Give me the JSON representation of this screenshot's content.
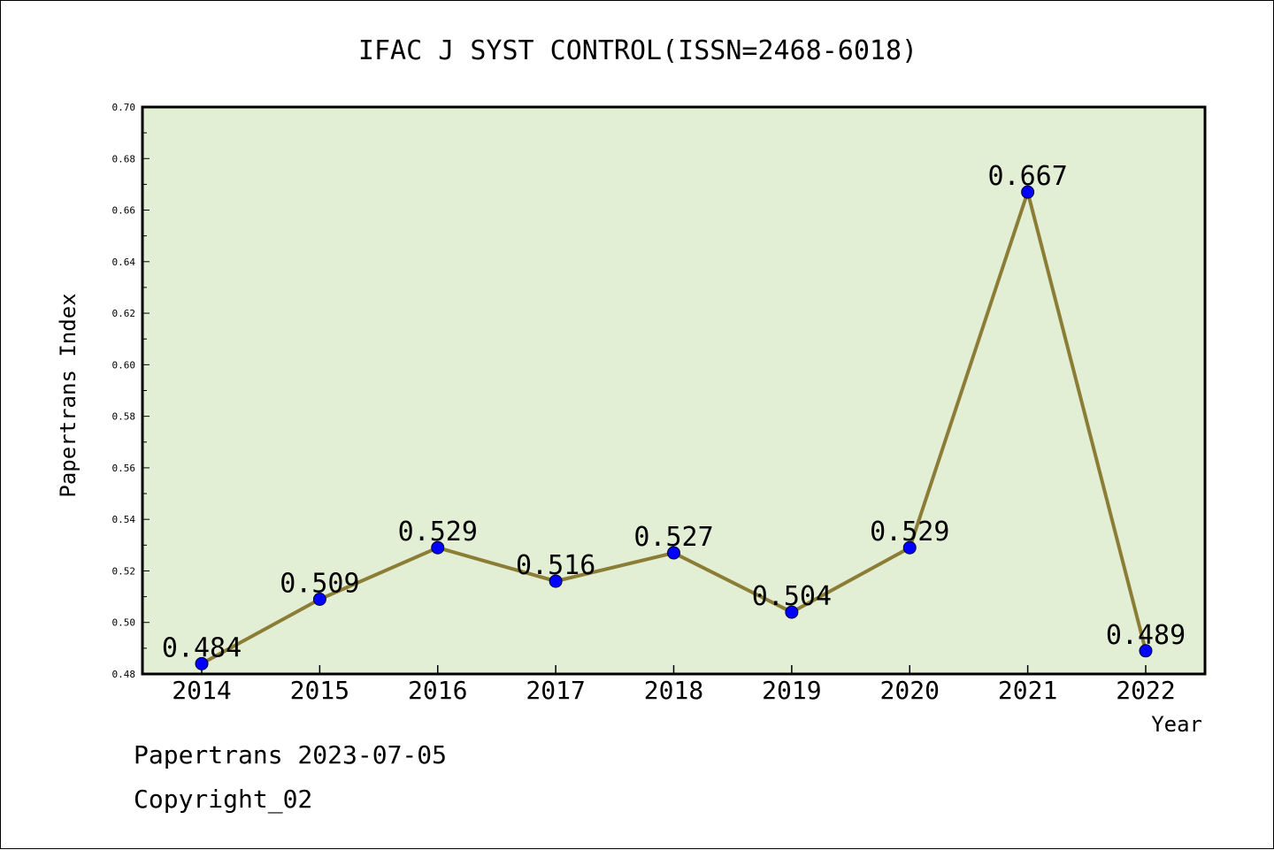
{
  "chart_data": {
    "type": "line",
    "title": "IFAC J SYST CONTROL(ISSN=2468-6018)",
    "xlabel": "Year",
    "ylabel": "Papertrans Index",
    "categories": [
      "2014",
      "2015",
      "2016",
      "2017",
      "2018",
      "2019",
      "2020",
      "2021",
      "2022"
    ],
    "series": [
      {
        "values": [
          0.484,
          0.509,
          0.529,
          0.516,
          0.527,
          0.504,
          0.529,
          0.667,
          0.489
        ]
      }
    ],
    "data_labels": [
      "0.484",
      "0.509",
      "0.529",
      "0.516",
      "0.527",
      "0.504",
      "0.529",
      "0.667",
      "0.489"
    ],
    "ylim": [
      0.48,
      0.7
    ],
    "yticks": [
      "0.48",
      "0.50",
      "0.52",
      "0.54",
      "0.56",
      "0.58",
      "0.60",
      "0.62",
      "0.64",
      "0.66",
      "0.68",
      "0.70"
    ],
    "grid": false,
    "legend": "none",
    "colors": {
      "plot_background": "#e2efd5",
      "line": "#8b7d35",
      "marker": "#0000ff"
    }
  },
  "footer": {
    "line1": "Papertrans 2023-07-05",
    "line2": "Copyright_02"
  }
}
